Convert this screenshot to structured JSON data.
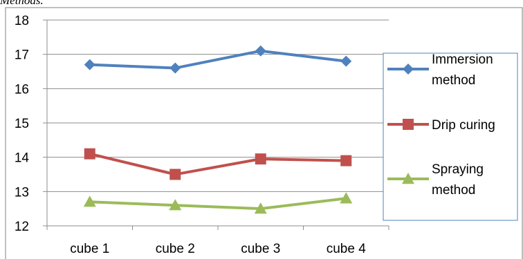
{
  "caption": "Methods.",
  "colors": {
    "grid": "#8c8c8c",
    "axis": "#8c8c8c",
    "frame": "#7f7f7f",
    "legend_border": "#4f81bd"
  },
  "chart_data": {
    "type": "line",
    "title": "",
    "xlabel": "",
    "ylabel": "",
    "categories": [
      "cube 1",
      "cube 2",
      "cube 3",
      "cube 4"
    ],
    "yticks": [
      "18",
      "17",
      "16",
      "15",
      "14",
      "13",
      "12"
    ],
    "ylim": [
      12,
      18
    ],
    "grid": true,
    "legend_position": "right",
    "series": [
      {
        "legend_lines": [
          "Immersion",
          "method"
        ],
        "color": "#4f81bd",
        "marker": "diamond",
        "values": [
          16.7,
          16.6,
          17.1,
          16.8
        ]
      },
      {
        "legend_lines": [
          "Drip curing"
        ],
        "color": "#c0504d",
        "marker": "square",
        "values": [
          14.1,
          13.5,
          13.95,
          13.9
        ]
      },
      {
        "legend_lines": [
          "Spraying",
          "method"
        ],
        "color": "#9bbb59",
        "marker": "triangle",
        "values": [
          12.7,
          12.6,
          12.5,
          12.8
        ]
      }
    ]
  }
}
